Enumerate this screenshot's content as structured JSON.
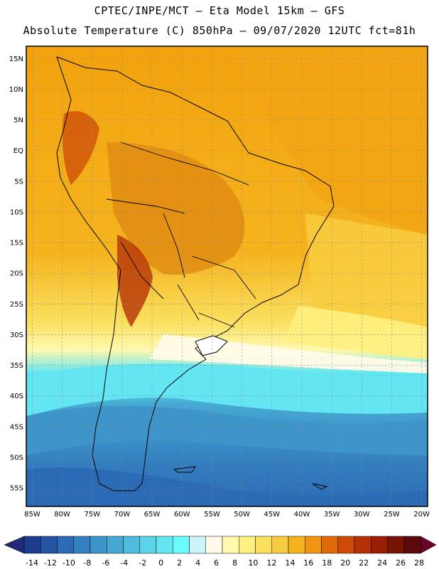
{
  "header": {
    "title_line1": "CPTEC/INPE/MCT –  Eta Model 15km – GFS",
    "title_line2": "Absolute Temperature (C) 850hPa – 09/07/2020 12UTC fct=81h"
  },
  "map": {
    "lon_range": [
      -86,
      -19
    ],
    "lat_range": [
      -58,
      17
    ],
    "lat_labels": [
      "15N",
      "10N",
      "5N",
      "EQ",
      "5S",
      "10S",
      "15S",
      "20S",
      "25S",
      "30S",
      "35S",
      "40S",
      "45S",
      "50S",
      "55S"
    ],
    "lat_values": [
      15,
      10,
      5,
      0,
      -5,
      -10,
      -15,
      -20,
      -25,
      -30,
      -35,
      -40,
      -45,
      -50,
      -55
    ],
    "lon_labels": [
      "85W",
      "80W",
      "75W",
      "70W",
      "65W",
      "60W",
      "55W",
      "50W",
      "45W",
      "40W",
      "35W",
      "30W",
      "25W",
      "20W"
    ],
    "lon_values": [
      -85,
      -80,
      -75,
      -70,
      -65,
      -60,
      -55,
      -50,
      -45,
      -40,
      -35,
      -30,
      -25,
      -20
    ]
  },
  "colorbar": {
    "labels": [
      "-14",
      "-12",
      "-10",
      "-8",
      "-6",
      "-4",
      "-2",
      "0",
      "2",
      "4",
      "6",
      "8",
      "10",
      "12",
      "14",
      "16",
      "18",
      "20",
      "22",
      "24",
      "26",
      "28"
    ],
    "colors": [
      "#1e3c8c",
      "#2355a0",
      "#2b6ab4",
      "#3480c0",
      "#3d95c9",
      "#46a9d3",
      "#4fbcdd",
      "#5ad3e8",
      "#63e6f2",
      "#6dfafa",
      "#cdf4fa",
      "#fffbe8",
      "#fff9b0",
      "#fff080",
      "#fbe060",
      "#f8cc40",
      "#f5b41e",
      "#f09614",
      "#e06a0a",
      "#cc4a08",
      "#b43206",
      "#9a1e04",
      "#781404",
      "#5a0a0a"
    ],
    "arrow_left": "#22287a",
    "arrow_right": "#6a0424"
  }
}
